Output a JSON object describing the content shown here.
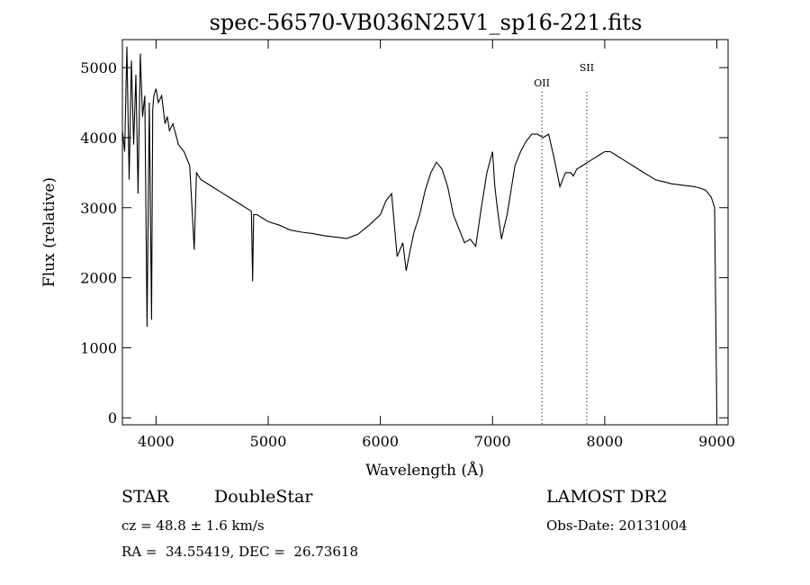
{
  "chart_data": {
    "type": "line",
    "title": "spec-56570-VB036N25V1_sp16-221.fits",
    "xlabel": "Wavelength (Å)",
    "ylabel": "Flux (relative)",
    "xlim": [
      3700,
      9100
    ],
    "ylim": [
      -100,
      5400
    ],
    "x_ticks": [
      4000,
      5000,
      6000,
      7000,
      8000,
      9000
    ],
    "y_ticks": [
      0,
      1000,
      2000,
      3000,
      4000,
      5000
    ],
    "grid": false,
    "line_color": "#000000",
    "series": [
      {
        "x": [
          3700,
          3720,
          3740,
          3760,
          3780,
          3800,
          3820,
          3840,
          3860,
          3880,
          3900,
          3920,
          3940,
          3960,
          3970,
          3980,
          4000,
          4020,
          4050,
          4080,
          4100,
          4120,
          4150,
          4200,
          4250,
          4300,
          4340,
          4360,
          4400,
          4450,
          4500,
          4550,
          4600,
          4650,
          4700,
          4750,
          4800,
          4850,
          4861,
          4870,
          4900,
          4950,
          5000,
          5100,
          5200,
          5300,
          5400,
          5500,
          5600,
          5700,
          5800,
          5900,
          6000,
          6050,
          6100,
          6150,
          6200,
          6230,
          6260,
          6300,
          6350,
          6400,
          6450,
          6500,
          6550,
          6600,
          6650,
          6700,
          6750,
          6800,
          6850,
          6900,
          6950,
          7000,
          7020,
          7050,
          7080,
          7100,
          7130,
          7160,
          7200,
          7250,
          7300,
          7350,
          7400,
          7450,
          7500,
          7550,
          7600,
          7650,
          7700,
          7720,
          7750,
          7800,
          7850,
          7900,
          7950,
          8000,
          8050,
          8100,
          8150,
          8200,
          8250,
          8300,
          8350,
          8400,
          8450,
          8500,
          8550,
          8600,
          8650,
          8700,
          8750,
          8800,
          8850,
          8900,
          8950,
          8980,
          9000
        ],
        "y": [
          4100,
          3800,
          5300,
          3400,
          5100,
          3900,
          4900,
          3200,
          5200,
          4300,
          4600,
          1300,
          4500,
          1400,
          4400,
          4600,
          4700,
          4500,
          4600,
          4200,
          4300,
          4100,
          4200,
          3900,
          3800,
          3600,
          2400,
          3500,
          3400,
          3350,
          3300,
          3250,
          3200,
          3150,
          3100,
          3050,
          3000,
          2950,
          1950,
          2900,
          2900,
          2850,
          2800,
          2750,
          2680,
          2650,
          2630,
          2600,
          2580,
          2560,
          2620,
          2750,
          2900,
          3100,
          3200,
          2300,
          2500,
          2100,
          2350,
          2650,
          2900,
          3250,
          3500,
          3650,
          3550,
          3300,
          2900,
          2700,
          2500,
          2550,
          2450,
          3000,
          3500,
          3800,
          3300,
          2900,
          2550,
          2700,
          2900,
          3200,
          3600,
          3800,
          3950,
          4050,
          4050,
          4000,
          4050,
          3700,
          3300,
          3500,
          3500,
          3450,
          3550,
          3600,
          3650,
          3700,
          3750,
          3800,
          3800,
          3750,
          3700,
          3650,
          3600,
          3550,
          3500,
          3450,
          3400,
          3380,
          3360,
          3340,
          3330,
          3320,
          3310,
          3300,
          3280,
          3250,
          3150,
          3000,
          0
        ]
      }
    ],
    "line_markers": [
      {
        "label": "OII",
        "wavelength": 7440
      },
      {
        "label": "SII",
        "wavelength": 7840
      }
    ]
  },
  "footer": {
    "class": "STAR",
    "subclass": "DoubleStar",
    "survey": "LAMOST DR2",
    "cz": "cz = 48.8 ± 1.6 km/s",
    "obs_date": "Obs-Date: 20131004",
    "radec": "RA =  34.55419, DEC =  26.73618"
  }
}
